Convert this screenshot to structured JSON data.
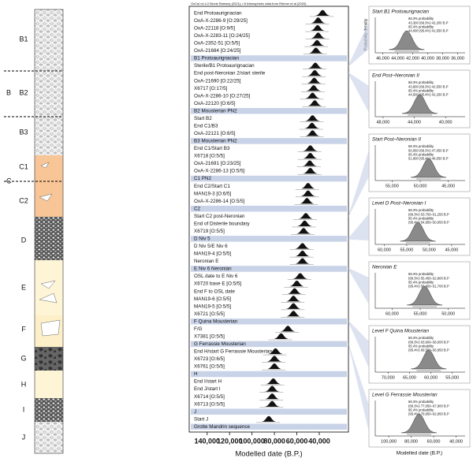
{
  "header": "OxCal v4.4.2 Bronk Ramsey (2021); r:5 Atmospheric data from Reimer et al (2020)",
  "strata": [
    "B1",
    "B",
    "B2",
    "B3",
    "C1",
    "C",
    "C2",
    "D",
    "E",
    "F",
    "G",
    "H",
    "I",
    "J"
  ],
  "chart_data": [
    {
      "type": "oxcal",
      "x_label": "Modelled date (B.P.)",
      "xlim": [
        156000,
        14000
      ],
      "xticks": [
        {
          "value": 140000,
          "label": "140,000"
        },
        {
          "value": 120000,
          "label": "120,000"
        },
        {
          "value": 100000,
          "label": "100,000"
        },
        {
          "value": 80000,
          "label": "80,000"
        },
        {
          "value": 60000,
          "label": "60,000"
        },
        {
          "value": 40000,
          "label": "40,000"
        }
      ],
      "rows": [
        {
          "label": "End Protoaurignacian",
          "value": 37000
        },
        {
          "label": "OxA-X-2286-9 [O:29/25]",
          "value": 41000
        },
        {
          "label": "OxA-22118 [O:9/5]",
          "value": 41500
        },
        {
          "label": "OxA-X-2283-11 [O:24/25]",
          "value": 41000
        },
        {
          "label": "OxA-2352-51 [O:5/5]",
          "value": 42000
        },
        {
          "label": "OxA-21684 [O:24/25]",
          "value": 43000
        },
        {
          "label": "B1 Protoaurignacian",
          "value": null
        },
        {
          "label": "Sterile/B1 Protoaurignacian",
          "value": 43500
        },
        {
          "label": "End post-Neronian 2/start sterile",
          "value": 44000
        },
        {
          "label": "OxA-21690 [O:22/25]",
          "value": 44500
        },
        {
          "label": "X6717 [O:17/5]",
          "value": 45000
        },
        {
          "label": "OxA-X-2286-10 [O:27/25]",
          "value": 46000
        },
        {
          "label": "OxA-22120 [O:6/5]",
          "value": 44000
        },
        {
          "label": "B2 Mousterian PN2",
          "value": null
        },
        {
          "label": "Start B2",
          "value": 46000
        },
        {
          "label": "End C1/B3",
          "value": 46500
        },
        {
          "label": "OxA-22121 [O:6/5]",
          "value": 46000
        },
        {
          "label": "B3 Mousterian PN2",
          "value": null
        },
        {
          "label": "End C1/Start B3",
          "value": 48000
        },
        {
          "label": "X6718 [O:5/5]",
          "value": 48000
        },
        {
          "label": "OxA-21691 [O:23/25]",
          "value": 48500
        },
        {
          "label": "OxA-X-2286-13 [O:5/5]",
          "value": 48000
        },
        {
          "label": "C1 PN2",
          "value": null
        },
        {
          "label": "End C2/Start C1",
          "value": 50000
        },
        {
          "label": "MAN19-3 [O:6/5]",
          "value": 50000
        },
        {
          "label": "OxA-X-2286-14 [O:5/5]",
          "value": 51000
        },
        {
          "label": "C2",
          "value": null
        },
        {
          "label": "Start C2 post-Neronian",
          "value": 52000
        },
        {
          "label": "End of Disterile boundary",
          "value": 53000
        },
        {
          "label": "X6719 [O:5/5]",
          "value": 54000
        },
        {
          "label": "D Niv 5",
          "value": null
        },
        {
          "label": "D Niv 5/E Niv 6",
          "value": 55000
        },
        {
          "label": "MAN19-4 [O:5/5]",
          "value": 55000
        },
        {
          "label": "Neronian E",
          "value": 55000
        },
        {
          "label": "E Niv 6 Neronian",
          "value": null
        },
        {
          "label": "OSL date to E Niv 6",
          "value": 57000
        },
        {
          "label": "X6720 base E [O:5/5]",
          "value": 60000
        },
        {
          "label": "End F to OSL date",
          "value": 62000
        },
        {
          "label": "MAN19-6 [O:5/5]",
          "value": 63000
        },
        {
          "label": "MAN19-5 [O:5/5]",
          "value": 63000
        },
        {
          "label": "X6721 [O:5/5]",
          "value": 63000
        },
        {
          "label": "F Quina Mousterian",
          "value": null
        },
        {
          "label": "F/G",
          "value": 68000
        },
        {
          "label": "X7381 [O:5/5]",
          "value": 74000
        },
        {
          "label": "G Ferrassie Mousterian",
          "value": null
        },
        {
          "label": "End H/start G Ferrassie Mousterian",
          "value": 79000
        },
        {
          "label": "X6723 [O:6/5]",
          "value": 80000
        },
        {
          "label": "X6761 [O:5/5]",
          "value": 80000
        },
        {
          "label": "H",
          "value": null
        },
        {
          "label": "End I/start H",
          "value": 81000
        },
        {
          "label": "End J/start I",
          "value": 82000
        },
        {
          "label": "X6714 [O:5/5]",
          "value": 82000
        },
        {
          "label": "X6713 [O:5/5]",
          "value": 82000
        },
        {
          "label": "J",
          "value": null
        },
        {
          "label": "Start J",
          "value": 85000
        },
        {
          "label": "Grotte Mandrin sequence",
          "value": null
        }
      ]
    },
    {
      "type": "density",
      "title": "Start B1 Protoaurignacian",
      "y_label": "Probability density",
      "lines": [
        "68.3% probability",
        "43,300 (68.3%) 42,200 B.P",
        "95.4% probability",
        "44,000 (95.4%) 41,550 B.P"
      ],
      "peak": 42800,
      "xlim": [
        47000,
        35000
      ],
      "xticks": [
        {
          "value": 46000,
          "label": "46,000"
        },
        {
          "value": 44000,
          "label": "44,000"
        },
        {
          "value": 42000,
          "label": "42,000"
        },
        {
          "value": 40000,
          "label": "40,000"
        },
        {
          "value": 38000,
          "label": "38,000"
        },
        {
          "value": 36000,
          "label": "36,000"
        }
      ]
    },
    {
      "type": "density",
      "title": "End Post–Neronian II",
      "lines": [
        "68.3% probability",
        "43,900 (68.3%) 42,550 B.P",
        "95.4% probability",
        "44,500 (95.4%) 42,250 B.P"
      ],
      "peak": 43300,
      "xlim": [
        49000,
        37500
      ],
      "xticks": [
        {
          "value": 48000,
          "label": "48,000"
        },
        {
          "value": 44000,
          "label": "44,000"
        },
        {
          "value": 40000,
          "label": "40,000"
        }
      ]
    },
    {
      "type": "density",
      "title": "Start Post–Neronian II",
      "lines": [
        "68.3% probability",
        "50,050 (68.3%) 47,050 B.P",
        "95.4% probability",
        "51,900 (95.4%) 46,050 B.P"
      ],
      "peak": 48500,
      "xlim": [
        58000,
        42000
      ],
      "xticks": [
        {
          "value": 55000,
          "label": "55,000"
        },
        {
          "value": 50000,
          "label": "50,000"
        },
        {
          "value": 45000,
          "label": "45,000"
        }
      ]
    },
    {
      "type": "density",
      "title": "Level D Post–Neronian I",
      "lines": [
        "68.3% probability",
        "(68.3%) 53,700–51,250 B.P",
        "95.4% probability",
        "(95.4%) 54,950–50,050 B.P"
      ],
      "peak": 52500,
      "xlim": [
        62000,
        42000
      ],
      "xticks": [
        {
          "value": 60000,
          "label": "60,000"
        },
        {
          "value": 55000,
          "label": "55,000"
        },
        {
          "value": 50000,
          "label": "50,000"
        },
        {
          "value": 45000,
          "label": "45,000"
        }
      ]
    },
    {
      "type": "density",
      "title": "Neronian E",
      "lines": [
        "68.3% probability",
        "(68.3%) 55,450–52,800 B.P",
        "95.4% probability",
        "(95.4%) 56,800–51,700 B.P"
      ],
      "peak": 54200,
      "xlim": [
        63000,
        47000
      ],
      "xticks": [
        {
          "value": 60000,
          "label": "60,000"
        },
        {
          "value": 55000,
          "label": "55,000"
        },
        {
          "value": 50000,
          "label": "50,000"
        }
      ]
    },
    {
      "type": "density",
      "title": "Level F Quina Mousterian",
      "lines": [
        "68.3% probability",
        "(68.3%) 63,600–58,000 B.P",
        "95.4% probability",
        "(95.4%) 69,550–56,850 B.P"
      ],
      "peak": 60500,
      "xlim": [
        73000,
        52000
      ],
      "xticks": [
        {
          "value": 70000,
          "label": "70,000"
        },
        {
          "value": 65000,
          "label": "65,000"
        },
        {
          "value": 60000,
          "label": "60,000"
        },
        {
          "value": 55000,
          "label": "55,000"
        }
      ]
    },
    {
      "type": "density",
      "title": "Level G Ferrassie Mousterian",
      "x_label": "Modelled date (B.P.)",
      "lines": [
        "68.3% probability",
        "(68.3%) 77,050–67,900 B.P",
        "95.4% probability",
        "(95.4%) 79,950–62,850 B.P"
      ],
      "peak": 73000,
      "xlim": [
        112000,
        32000
      ],
      "xticks": [
        {
          "value": 100000,
          "label": "100,000"
        },
        {
          "value": 80000,
          "label": "80,000"
        },
        {
          "value": 60000,
          "label": "60,000"
        },
        {
          "value": 40000,
          "label": "40,000"
        }
      ]
    }
  ]
}
